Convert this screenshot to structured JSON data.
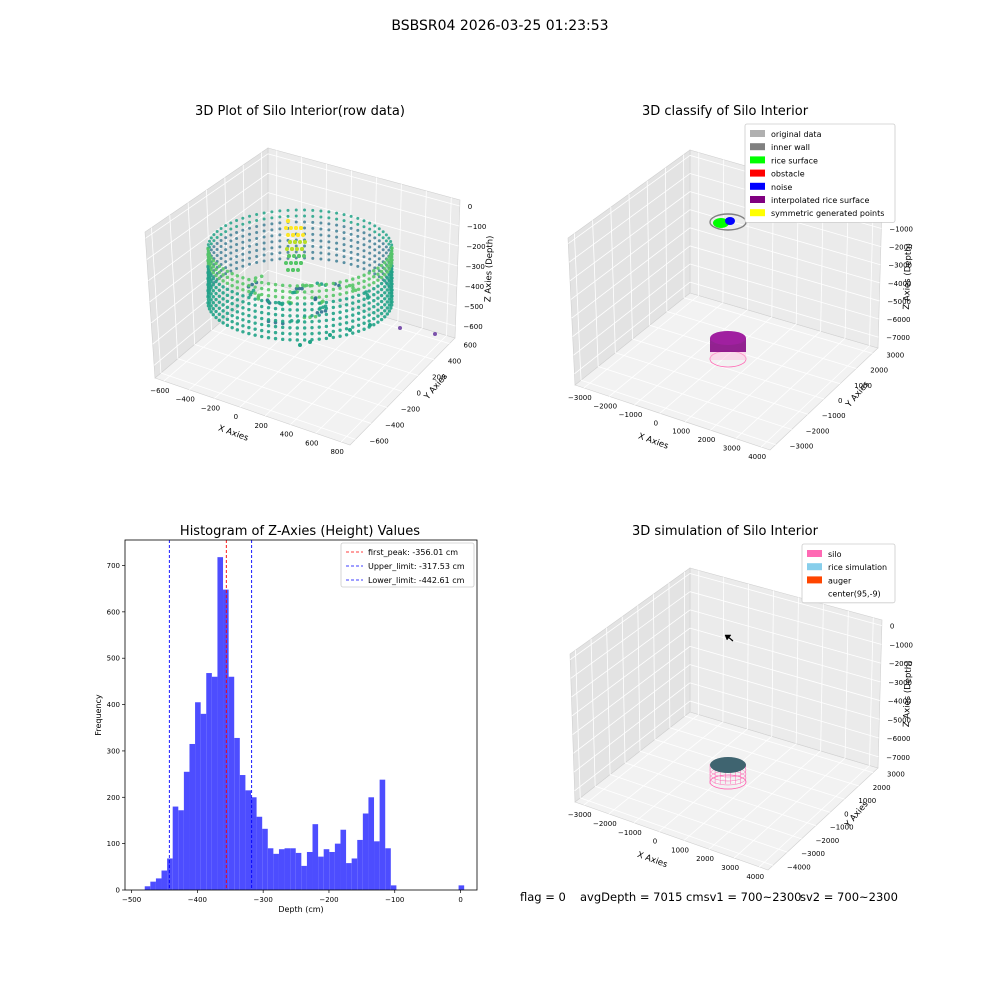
{
  "figure": {
    "suptitle": "BSBSR04 2026-03-25 01:23:53"
  },
  "footer": {
    "flag": "flag = 0",
    "avg_depth": "avgDepth = 7015 cmsv1 = 700~2300",
    "sv2": "sv2 = 700~2300"
  },
  "chart_data": [
    {
      "type": "scatter",
      "title": "3D Plot of Silo Interior(row data)",
      "xlabel": "X Axies",
      "ylabel": "Y Axies",
      "zlabel": "Z Axies (Depth)",
      "x_ticks": [
        "−600",
        "−400",
        "−200",
        "0",
        "200",
        "400",
        "600",
        "800"
      ],
      "y_ticks": [
        "−600",
        "−400",
        "−200",
        "0",
        "200",
        "400",
        "600"
      ],
      "z_ticks": [
        "0",
        "−100",
        "−200",
        "−300",
        "−400",
        "−500",
        "−600"
      ],
      "xlim": [
        -600,
        800
      ],
      "ylim": [
        -600,
        600
      ],
      "zlim": [
        -600,
        0
      ],
      "colormap": [
        "#2d708e",
        "#20a387",
        "#55c667",
        "#b8de29",
        "#fde725"
      ]
    },
    {
      "type": "scatter",
      "title": "3D classify of Silo Interior",
      "xlabel": "X Axies",
      "ylabel": "Y Axies",
      "zlabel": "Z Axies (Depth)",
      "x_ticks": [
        "−3000",
        "−2000",
        "−1000",
        "0",
        "1000",
        "2000",
        "3000",
        "4000"
      ],
      "y_ticks": [
        "−3000",
        "−2000",
        "−1000",
        "0",
        "1000",
        "2000",
        "3000"
      ],
      "z_ticks": [
        "0",
        "−1000",
        "−2000",
        "−3000",
        "−4000",
        "−5000",
        "−6000",
        "−7000"
      ],
      "xlim": [
        -3500,
        4000
      ],
      "ylim": [
        -3500,
        3500
      ],
      "zlim": [
        -7500,
        0
      ],
      "legend": [
        {
          "label": "original data",
          "color": "#b0b0b0"
        },
        {
          "label": "inner wall",
          "color": "#808080"
        },
        {
          "label": "rice surface",
          "color": "#00ff00"
        },
        {
          "label": "obstacle",
          "color": "#ff0000"
        },
        {
          "label": "noise",
          "color": "#0000ff"
        },
        {
          "label": "interpolated rice surface",
          "color": "#800080"
        },
        {
          "label": "symmetric generated points",
          "color": "#ffff00"
        }
      ],
      "legend_loc": "upper right"
    },
    {
      "type": "bar",
      "title": "Histogram of Z-Axies (Height) Values",
      "xlabel": "Depth (cm)",
      "ylabel": "Frequency",
      "bin_width": 8.5,
      "x_ticks": [
        "−500",
        "−400",
        "−300",
        "−200",
        "−100",
        "0"
      ],
      "y_ticks": [
        "0",
        "100",
        "200",
        "300",
        "400",
        "500",
        "600",
        "700"
      ],
      "xlim": [
        -510,
        25
      ],
      "ylim": [
        0,
        755
      ],
      "bar_color": "#4d4dff",
      "bins": [
        {
          "x": -480,
          "v": 8
        },
        {
          "x": -471.5,
          "v": 18
        },
        {
          "x": -463,
          "v": 25
        },
        {
          "x": -454.5,
          "v": 42
        },
        {
          "x": -446,
          "v": 68
        },
        {
          "x": -437.5,
          "v": 180
        },
        {
          "x": -429,
          "v": 172
        },
        {
          "x": -420.5,
          "v": 255
        },
        {
          "x": -412,
          "v": 315
        },
        {
          "x": -403.5,
          "v": 405
        },
        {
          "x": -395,
          "v": 380
        },
        {
          "x": -386.5,
          "v": 468
        },
        {
          "x": -378,
          "v": 460
        },
        {
          "x": -369.5,
          "v": 718
        },
        {
          "x": -361,
          "v": 648
        },
        {
          "x": -352.5,
          "v": 460
        },
        {
          "x": -344,
          "v": 328
        },
        {
          "x": -335.5,
          "v": 248
        },
        {
          "x": -327,
          "v": 215
        },
        {
          "x": -318.5,
          "v": 200
        },
        {
          "x": -310,
          "v": 158
        },
        {
          "x": -301.5,
          "v": 132
        },
        {
          "x": -293,
          "v": 90
        },
        {
          "x": -284.5,
          "v": 78
        },
        {
          "x": -276,
          "v": 88
        },
        {
          "x": -267.5,
          "v": 90
        },
        {
          "x": -259,
          "v": 90
        },
        {
          "x": -250.5,
          "v": 80
        },
        {
          "x": -242,
          "v": 52
        },
        {
          "x": -233.5,
          "v": 82
        },
        {
          "x": -225,
          "v": 142
        },
        {
          "x": -216.5,
          "v": 72
        },
        {
          "x": -208,
          "v": 88
        },
        {
          "x": -199.5,
          "v": 82
        },
        {
          "x": -191,
          "v": 100
        },
        {
          "x": -182.5,
          "v": 130
        },
        {
          "x": -174,
          "v": 58
        },
        {
          "x": -165.5,
          "v": 68
        },
        {
          "x": -157,
          "v": 108
        },
        {
          "x": -148.5,
          "v": 165
        },
        {
          "x": -140,
          "v": 200
        },
        {
          "x": -131.5,
          "v": 105
        },
        {
          "x": -123,
          "v": 238
        },
        {
          "x": -114.5,
          "v": 90
        },
        {
          "x": -106,
          "v": 10
        },
        {
          "x": -80,
          "v": 0
        },
        {
          "x": -3,
          "v": 10
        }
      ],
      "vlines": [
        {
          "label": "first_peak: -356.01 cm",
          "value": -356.01,
          "color": "#ff0000"
        },
        {
          "label": "Upper_limit: -317.53 cm",
          "value": -317.53,
          "color": "#0000ff"
        },
        {
          "label": "Lower_limit: -442.61 cm",
          "value": -442.61,
          "color": "#0000ff"
        }
      ],
      "legend_loc": "upper right"
    },
    {
      "type": "scatter",
      "title": "3D simulation of Silo Interior",
      "xlabel": "X Axies",
      "ylabel": "Y Axies",
      "zlabel": "Z Axies (Depth)",
      "x_ticks": [
        "−3000",
        "−2000",
        "−1000",
        "0",
        "1000",
        "2000",
        "3000",
        "4000"
      ],
      "y_ticks": [
        "−4000",
        "−3000",
        "−2000",
        "−1000",
        "0",
        "1000",
        "2000",
        "3000"
      ],
      "z_ticks": [
        "0",
        "−1000",
        "−2000",
        "−3000",
        "−4000",
        "−5000",
        "−6000",
        "−7000"
      ],
      "xlim": [
        -3500,
        4000
      ],
      "ylim": [
        -4000,
        3500
      ],
      "zlim": [
        -7500,
        0
      ],
      "legend": [
        {
          "label": "silo",
          "color": "#ff69b4"
        },
        {
          "label": "rice simulation",
          "color": "#87ceeb"
        },
        {
          "label": "auger",
          "color": "#ff4500"
        },
        {
          "label": "center(95,-9)",
          "color": "none"
        }
      ],
      "legend_loc": "upper right"
    }
  ]
}
